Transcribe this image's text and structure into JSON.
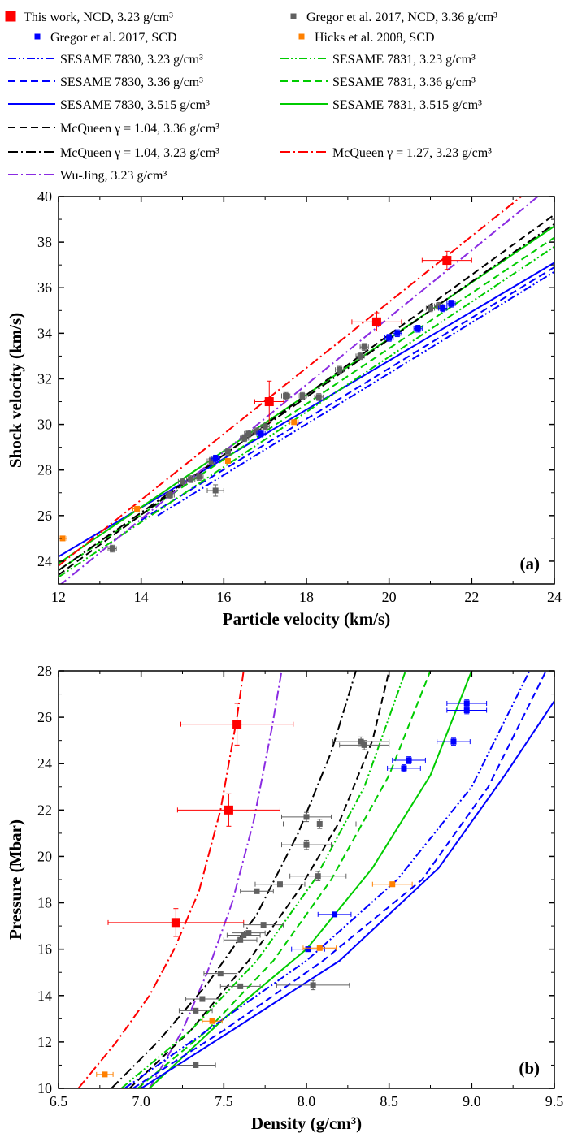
{
  "legend": {
    "symbols": [
      {
        "label": "This work, NCD, 3.23 g/cm³",
        "color": "#ff0000",
        "size": "large"
      },
      {
        "label": "Gregor et al. 2017, NCD, 3.36 g/cm³",
        "color": "#606060",
        "size": "small"
      },
      {
        "label": "Gregor et al. 2017, SCD",
        "color": "#0000ff",
        "size": "small"
      },
      {
        "label": "Hicks et al. 2008, SCD",
        "color": "#ff8000",
        "size": "small"
      }
    ],
    "lines": [
      {
        "label": "SESAME 7830, 3.23 g/cm³",
        "color": "#0000ff",
        "dash": "dashdotdot"
      },
      {
        "label": "SESAME 7831, 3.23 g/cm³",
        "color": "#00cc00",
        "dash": "dashdotdot"
      },
      {
        "label": "SESAME 7830, 3.36 g/cm³",
        "color": "#0000ff",
        "dash": "dash"
      },
      {
        "label": "SESAME 7831, 3.36 g/cm³",
        "color": "#00cc00",
        "dash": "dash"
      },
      {
        "label": "SESAME 7830, 3.515 g/cm³",
        "color": "#0000ff",
        "dash": "solid"
      },
      {
        "label": "SESAME 7831, 3.515 g/cm³",
        "color": "#00cc00",
        "dash": "solid"
      },
      {
        "label": "McQueen γ = 1.04, 3.36 g/cm³",
        "color": "#000000",
        "dash": "dash"
      },
      {
        "label": "McQueen γ = 1.04, 3.23 g/cm³",
        "color": "#000000",
        "dash": "dashdot"
      },
      {
        "label": "McQueen γ = 1.27, 3.23 g/cm³",
        "color": "#ff0000",
        "dash": "dashdot"
      },
      {
        "label": "Wu-Jing, 3.23 g/cm³",
        "color": "#8a2be2",
        "dash": "dashdot"
      }
    ]
  },
  "chart_data": [
    {
      "type": "scatter",
      "panel_label": "(a)",
      "xlabel": "Particle velocity (km/s)",
      "ylabel": "Shock velocity (km/s)",
      "xlim": [
        12,
        24
      ],
      "ylim": [
        23,
        40
      ],
      "xticks": [
        12,
        14,
        16,
        18,
        20,
        22,
        24
      ],
      "yticks": [
        24,
        26,
        28,
        30,
        32,
        34,
        36,
        38,
        40
      ],
      "series": [
        {
          "name": "This work, NCD, 3.23 g/cm³",
          "color": "#ff0000",
          "marker": "square-large",
          "points": [
            [
              17.1,
              31.0,
              0.35,
              0.9
            ],
            [
              19.7,
              34.5,
              0.6,
              0.4
            ],
            [
              21.4,
              37.2,
              0.6,
              0.4
            ]
          ]
        },
        {
          "name": "Gregor et al. 2017, NCD, 3.36 g/cm³",
          "color": "#606060",
          "marker": "square",
          "points": [
            [
              13.3,
              24.55,
              0.1,
              0.15
            ],
            [
              14.7,
              26.9,
              0.1,
              0.15
            ],
            [
              15.0,
              27.5,
              0.1,
              0.15
            ],
            [
              15.2,
              27.6,
              0.1,
              0.15
            ],
            [
              15.4,
              27.7,
              0.1,
              0.15
            ],
            [
              15.7,
              28.4,
              0.1,
              0.15
            ],
            [
              15.8,
              27.1,
              0.2,
              0.25
            ],
            [
              16.1,
              28.8,
              0.1,
              0.15
            ],
            [
              16.5,
              29.4,
              0.1,
              0.15
            ],
            [
              16.6,
              29.6,
              0.1,
              0.15
            ],
            [
              16.8,
              29.7,
              0.1,
              0.15
            ],
            [
              17.0,
              29.9,
              0.1,
              0.15
            ],
            [
              17.5,
              31.25,
              0.1,
              0.15
            ],
            [
              17.9,
              31.25,
              0.1,
              0.15
            ],
            [
              18.3,
              31.2,
              0.1,
              0.15
            ],
            [
              18.8,
              32.4,
              0.1,
              0.15
            ],
            [
              19.3,
              33.0,
              0.1,
              0.15
            ],
            [
              19.4,
              33.4,
              0.1,
              0.15
            ],
            [
              21.0,
              35.1,
              0.1,
              0.15
            ],
            [
              21.2,
              35.2,
              0.1,
              0.15
            ]
          ]
        },
        {
          "name": "Gregor et al. 2017, SCD",
          "color": "#0000ff",
          "marker": "square",
          "points": [
            [
              15.8,
              28.5,
              0.1,
              0.15
            ],
            [
              16.9,
              29.6,
              0.1,
              0.15
            ],
            [
              20.0,
              33.8,
              0.1,
              0.15
            ],
            [
              20.2,
              34.0,
              0.1,
              0.15
            ],
            [
              20.7,
              34.2,
              0.1,
              0.15
            ],
            [
              21.3,
              35.1,
              0.1,
              0.15
            ],
            [
              21.5,
              35.3,
              0.1,
              0.15
            ]
          ]
        },
        {
          "name": "Hicks et al. 2008, SCD",
          "color": "#ff8000",
          "marker": "square",
          "points": [
            [
              12.1,
              25.0,
              0.1,
              0.1
            ],
            [
              13.9,
              26.3,
              0.1,
              0.1
            ],
            [
              16.1,
              28.4,
              0.1,
              0.1
            ],
            [
              17.7,
              30.1,
              0.1,
              0.1
            ]
          ]
        }
      ],
      "curves": [
        {
          "name": "SESAME 7830, 3.23 g/cm³",
          "color": "#0000ff",
          "dash": "dashdotdot",
          "x": [
            14.4,
            24
          ],
          "y": [
            26.0,
            36.7
          ]
        },
        {
          "name": "SESAME 7830, 3.36 g/cm³",
          "color": "#0000ff",
          "dash": "dash",
          "x": [
            14.0,
            24
          ],
          "y": [
            25.8,
            36.9
          ]
        },
        {
          "name": "SESAME 7830, 3.515 g/cm³",
          "color": "#0000ff",
          "dash": "solid",
          "x": [
            12,
            24
          ],
          "y": [
            24.2,
            37.1
          ]
        },
        {
          "name": "SESAME 7831, 3.23 g/cm³",
          "color": "#00cc00",
          "dash": "dashdotdot",
          "x": [
            12,
            24
          ],
          "y": [
            23.3,
            37.8
          ]
        },
        {
          "name": "SESAME 7831, 3.36 g/cm³",
          "color": "#00cc00",
          "dash": "dash",
          "x": [
            12,
            24
          ],
          "y": [
            23.6,
            38.2
          ]
        },
        {
          "name": "SESAME 7831, 3.515 g/cm³",
          "color": "#00cc00",
          "dash": "solid",
          "x": [
            12,
            24
          ],
          "y": [
            23.9,
            38.7
          ]
        },
        {
          "name": "McQueen γ = 1.04, 3.36 g/cm³",
          "color": "#000000",
          "dash": "dash",
          "x": [
            12,
            24
          ],
          "y": [
            23.4,
            39.2
          ]
        },
        {
          "name": "McQueen γ = 1.04, 3.23 g/cm³",
          "color": "#000000",
          "dash": "dashdot",
          "x": [
            12,
            24
          ],
          "y": [
            23.6,
            38.8
          ]
        },
        {
          "name": "McQueen γ = 1.27, 3.23 g/cm³",
          "color": "#ff0000",
          "dash": "dashdot",
          "x": [
            12,
            23.2
          ],
          "y": [
            23.8,
            40.0
          ]
        },
        {
          "name": "Wu-Jing, 3.23 g/cm³",
          "color": "#8a2be2",
          "dash": "dashdot",
          "x": [
            12,
            23.6
          ],
          "y": [
            22.9,
            40.0
          ]
        }
      ]
    },
    {
      "type": "scatter",
      "panel_label": "(b)",
      "xlabel": "Density (g/cm³)",
      "ylabel": "Pressure (Mbar)",
      "xlim": [
        6.5,
        9.5
      ],
      "ylim": [
        10,
        28
      ],
      "xticks": [
        6.5,
        7.0,
        7.5,
        8.0,
        8.5,
        9.0,
        9.5
      ],
      "yticks": [
        10,
        12,
        14,
        16,
        18,
        20,
        22,
        24,
        26,
        28
      ],
      "series": [
        {
          "name": "This work, NCD, 3.23 g/cm³",
          "color": "#ff0000",
          "marker": "square-large",
          "points": [
            [
              7.21,
              17.15,
              0.41,
              0.6
            ],
            [
              7.53,
              22.0,
              0.31,
              0.7
            ],
            [
              7.58,
              25.7,
              0.34,
              0.9
            ]
          ]
        },
        {
          "name": "Gregor et al. 2017, NCD, 3.36 g/cm³",
          "color": "#606060",
          "marker": "square",
          "points": [
            [
              7.33,
              11.0,
              0.12,
              0.1
            ],
            [
              7.33,
              13.35,
              0.1,
              0.1
            ],
            [
              7.37,
              13.85,
              0.1,
              0.1
            ],
            [
              7.48,
              14.95,
              0.1,
              0.1
            ],
            [
              7.6,
              14.4,
              0.12,
              0.1
            ],
            [
              7.6,
              16.4,
              0.1,
              0.1
            ],
            [
              7.62,
              16.6,
              0.1,
              0.1
            ],
            [
              7.65,
              16.7,
              0.1,
              0.1
            ],
            [
              7.7,
              18.5,
              0.1,
              0.1
            ],
            [
              7.74,
              17.05,
              0.12,
              0.1
            ],
            [
              7.84,
              18.8,
              0.15,
              0.1
            ],
            [
              8.0,
              21.7,
              0.15,
              0.2
            ],
            [
              8.0,
              20.5,
              0.15,
              0.2
            ],
            [
              8.04,
              14.45,
              0.22,
              0.2
            ],
            [
              8.07,
              19.15,
              0.17,
              0.2
            ],
            [
              8.08,
              21.4,
              0.22,
              0.2
            ],
            [
              8.33,
              24.95,
              0.17,
              0.2
            ],
            [
              8.35,
              24.8,
              0.15,
              0.2
            ]
          ]
        },
        {
          "name": "Gregor et al. 2017, SCD",
          "color": "#0000ff",
          "marker": "square",
          "points": [
            [
              8.01,
              16.0,
              0.1,
              0.1
            ],
            [
              8.17,
              17.5,
              0.1,
              0.1
            ],
            [
              8.59,
              23.8,
              0.1,
              0.15
            ],
            [
              8.62,
              24.15,
              0.1,
              0.15
            ],
            [
              8.89,
              24.95,
              0.1,
              0.15
            ],
            [
              8.97,
              26.6,
              0.12,
              0.15
            ],
            [
              8.97,
              26.3,
              0.12,
              0.15
            ]
          ]
        },
        {
          "name": "Hicks et al. 2008, SCD",
          "color": "#ff8000",
          "marker": "square",
          "points": [
            [
              6.78,
              10.6,
              0.05,
              0.05
            ],
            [
              7.43,
              12.9,
              0.06,
              0.05
            ],
            [
              8.08,
              16.05,
              0.1,
              0.1
            ],
            [
              8.52,
              18.8,
              0.12,
              0.1
            ]
          ]
        }
      ],
      "curves": [
        {
          "name": "McQueen γ = 1.27, 3.23 g/cm³",
          "color": "#ff0000",
          "dash": "dashdot",
          "x": [
            6.62,
            6.85,
            7.05,
            7.2,
            7.35,
            7.48,
            7.58,
            7.62
          ],
          "y": [
            10,
            12,
            14,
            16,
            18.5,
            22,
            26,
            28
          ]
        },
        {
          "name": "Wu-Jing, 3.23 g/cm³",
          "color": "#8a2be2",
          "dash": "dashdot",
          "x": [
            7.05,
            7.25,
            7.4,
            7.55,
            7.68,
            7.79,
            7.85
          ],
          "y": [
            10,
            12.5,
            15,
            18,
            21.5,
            25.5,
            28
          ]
        },
        {
          "name": "McQueen γ = 1.04, 3.23 g/cm³",
          "color": "#000000",
          "dash": "dashdot",
          "x": [
            6.82,
            7.1,
            7.4,
            7.7,
            7.95,
            8.15,
            8.3
          ],
          "y": [
            10,
            12,
            14.5,
            17.5,
            21,
            24.5,
            28
          ]
        },
        {
          "name": "McQueen γ = 1.04, 3.36 g/cm³",
          "color": "#000000",
          "dash": "dash",
          "x": [
            6.93,
            7.3,
            7.65,
            7.95,
            8.2,
            8.4,
            8.5
          ],
          "y": [
            10,
            12.5,
            15.5,
            18.5,
            21.5,
            25,
            28
          ]
        },
        {
          "name": "SESAME 7831, 3.23 g/cm³",
          "color": "#00cc00",
          "dash": "dashdotdot",
          "x": [
            6.88,
            7.3,
            7.7,
            8.05,
            8.35,
            8.6
          ],
          "y": [
            10,
            12.5,
            15.5,
            19,
            23,
            28
          ]
        },
        {
          "name": "SESAME 7831, 3.36 g/cm³",
          "color": "#00cc00",
          "dash": "dash",
          "x": [
            6.98,
            7.4,
            7.8,
            8.15,
            8.5,
            8.75
          ],
          "y": [
            10,
            12.5,
            15.5,
            19,
            23.5,
            28
          ]
        },
        {
          "name": "SESAME 7831, 3.515 g/cm³",
          "color": "#00cc00",
          "dash": "solid",
          "x": [
            7.05,
            7.5,
            8.0,
            8.4,
            8.75,
            9.0
          ],
          "y": [
            10,
            13,
            16,
            19.5,
            23.5,
            28
          ]
        },
        {
          "name": "SESAME 7830, 3.23 g/cm³",
          "color": "#0000ff",
          "dash": "dashdotdot",
          "x": [
            6.9,
            7.4,
            8.0,
            8.55,
            9.0,
            9.35
          ],
          "y": [
            10,
            12.5,
            15.5,
            19,
            23,
            28
          ]
        },
        {
          "name": "SESAME 7830, 3.36 g/cm³",
          "color": "#0000ff",
          "dash": "dash",
          "x": [
            6.95,
            7.5,
            8.1,
            8.7,
            9.1,
            9.45
          ],
          "y": [
            10,
            12.5,
            15.5,
            19,
            23,
            28
          ]
        },
        {
          "name": "SESAME 7830, 3.515 g/cm³",
          "color": "#0000ff",
          "dash": "solid",
          "x": [
            7.0,
            7.55,
            8.2,
            8.8,
            9.2,
            9.5
          ],
          "y": [
            10,
            12.5,
            15.5,
            19.5,
            23.5,
            26.7
          ]
        }
      ]
    }
  ]
}
